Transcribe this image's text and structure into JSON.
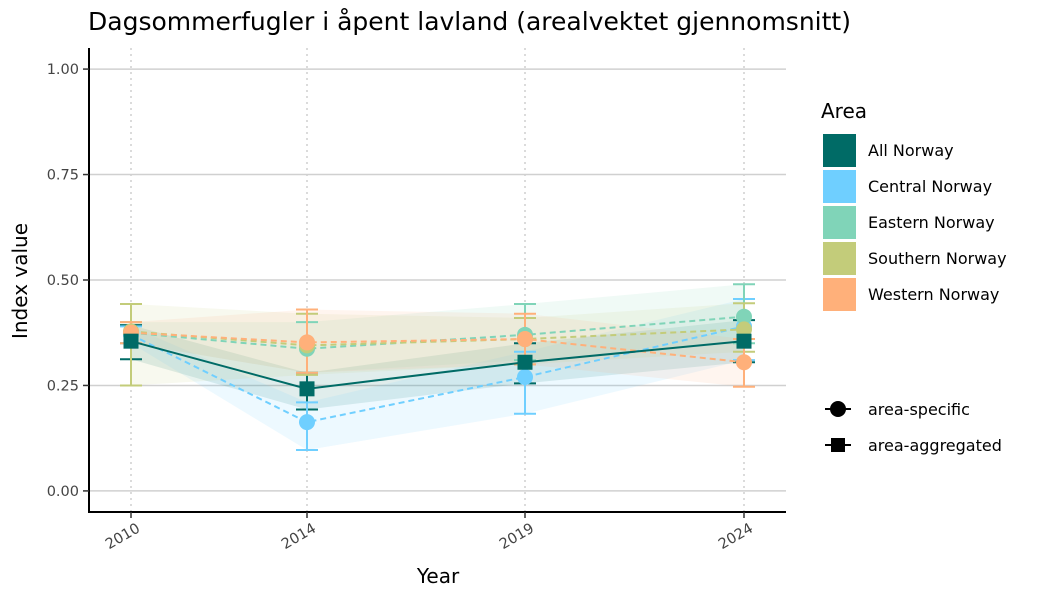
{
  "chart_data": {
    "type": "line",
    "title": "Dagsommerfugler i åpent lavland (arealvektet gjennomsnitt)",
    "xlabel": "Year",
    "ylabel": "Index value",
    "x": [
      2010,
      2014,
      2019,
      2024
    ],
    "x_tick_labels": [
      "2010",
      "2014",
      "2019",
      "2024"
    ],
    "ylim": [
      -0.05,
      1.05
    ],
    "y_ticks": [
      0.0,
      0.25,
      0.5,
      0.75,
      1.0
    ],
    "y_tick_labels": [
      "0.00",
      "0.25",
      "0.50",
      "0.75",
      "1.00"
    ],
    "grid": "horizontal major lines, vertical dotted lines at years",
    "legend_position": "right",
    "legend_title": "Area",
    "series": [
      {
        "name": "All Norway",
        "color": "#006B66",
        "marker": "square",
        "line_style": "solid",
        "values": [
          0.355,
          0.242,
          0.305,
          0.355
        ],
        "lower": [
          0.312,
          0.193,
          0.255,
          0.305
        ],
        "upper": [
          0.393,
          0.28,
          0.35,
          0.405
        ]
      },
      {
        "name": "Central Norway",
        "color": "#6FCFFF",
        "marker": "circle",
        "line_style": "dashed",
        "values": [
          0.37,
          0.163,
          0.27,
          0.39
        ],
        "lower": [
          0.35,
          0.097,
          0.183,
          0.31
        ],
        "upper": [
          0.39,
          0.21,
          0.33,
          0.455
        ]
      },
      {
        "name": "Eastern Norway",
        "color": "#80D4B8",
        "marker": "circle",
        "line_style": "dashed",
        "values": [
          0.375,
          0.337,
          0.37,
          0.413
        ],
        "lower": [
          0.35,
          0.28,
          0.31,
          0.35
        ],
        "upper": [
          0.4,
          0.4,
          0.443,
          0.49
        ]
      },
      {
        "name": "Southern Norway",
        "color": "#C3CC7A",
        "marker": "circle",
        "line_style": "dashed",
        "values": [
          0.378,
          0.345,
          0.36,
          0.383
        ],
        "lower": [
          0.25,
          0.275,
          0.3,
          0.33
        ],
        "upper": [
          0.443,
          0.42,
          0.41,
          0.445
        ]
      },
      {
        "name": "Western Norway",
        "color": "#FFB07A",
        "marker": "circle",
        "line_style": "dashed",
        "values": [
          0.375,
          0.352,
          0.36,
          0.305
        ],
        "lower": [
          0.35,
          0.28,
          0.3,
          0.247
        ],
        "upper": [
          0.4,
          0.43,
          0.42,
          0.36
        ]
      }
    ],
    "shape_legend": [
      {
        "label": "area-specific",
        "marker": "circle"
      },
      {
        "label": "area-aggregated",
        "marker": "square"
      }
    ]
  }
}
